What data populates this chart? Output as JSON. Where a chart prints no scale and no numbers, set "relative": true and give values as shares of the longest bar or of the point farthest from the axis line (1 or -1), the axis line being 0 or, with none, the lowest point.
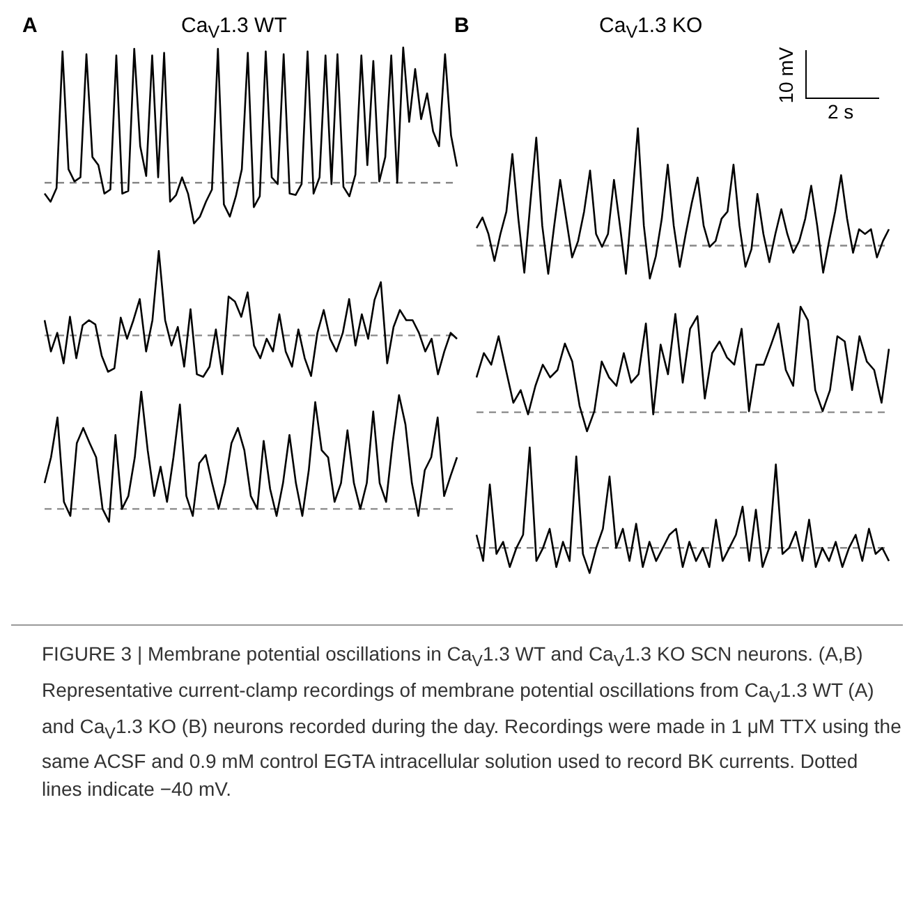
{
  "chart_data": [
    {
      "type": "line",
      "title": "Ca$_{V}$1.3 WT",
      "annotations": [
        "A",
        "FIGURE 3 | Membrane potential oscillations in Ca$_{V}$1.3 WT and Ca$_{V}$1.3 KO SCN neurons. (A,B) Representative current-clamp recordings of membrane potential oscillations from Ca$_{V}$1.3 WT (A) and Ca$_{V}$1.3 KO (B) neurons recorded during the day. Recordings were made in 1 μM TTX using the same ACSF and 0.9 mM control EGTA intracellular solution used to record BK currents. Dotted lines indicate −40 mV."
      ],
      "relative": true,
      "marker": "none",
      "categories": [
        null,
        null,
        null,
        null,
        null,
        null,
        null,
        null,
        null,
        null,
        null,
        null,
        null,
        null,
        null,
        null,
        null,
        null,
        null,
        null,
        null,
        null,
        null,
        null,
        null,
        null,
        null,
        null,
        null,
        null,
        null,
        null,
        null,
        null,
        null,
        null,
        null,
        null,
        null,
        null,
        null,
        null,
        null,
        null,
        null,
        null,
        null,
        null,
        null,
        null,
        null,
        null,
        null,
        null,
        null,
        null,
        null,
        null,
        null,
        null,
        null,
        null,
        null,
        null,
        null,
        null,
        null,
        null,
        null,
        null
      ],
      "series": [
        {
          "color": "#000000",
          "values": [
            -0.08,
            -0.14,
            -0.04,
            0.97,
            0.1,
            0.01,
            0.04,
            0.95,
            0.19,
            0.13,
            -0.08,
            -0.05,
            0.94,
            -0.08,
            -0.06,
            0.99,
            0.27,
            0.05,
            0.94,
            0.04,
            0.96,
            -0.14,
            -0.09,
            0.04,
            -0.08,
            -0.3,
            -0.25,
            -0.14,
            -0.05,
            0.99,
            -0.16,
            -0.25,
            -0.1,
            0.1,
            0.96,
            -0.18,
            -0.1,
            0.97,
            0.04,
            -0.01,
            0.95,
            -0.08,
            -0.09,
            -0.01,
            0.97,
            -0.08,
            0.04,
            0.94,
            -0.01,
            0.95,
            -0.03,
            -0.1,
            0.06,
            0.94,
            0.13,
            0.9,
            0.01,
            0.19,
            0.94,
            0,
            1,
            0.45,
            0.84,
            0.47,
            0.66,
            0.38,
            0.27,
            0.95,
            0.35,
            0.12
          ]
        }
      ],
      "ref_lines": [
        {
          "axis": "y",
          "value": 0,
          "color": "#888888",
          "line_style": "dashed"
        }
      ]
    },
    {
      "type": "line",
      "relative": true,
      "marker": "none",
      "categories": [
        null,
        null,
        null,
        null,
        null,
        null,
        null,
        null,
        null,
        null,
        null,
        null,
        null,
        null,
        null,
        null,
        null,
        null,
        null,
        null,
        null,
        null,
        null,
        null,
        null,
        null,
        null,
        null,
        null,
        null,
        null,
        null,
        null,
        null,
        null,
        null,
        null,
        null,
        null,
        null,
        null,
        null,
        null,
        null,
        null,
        null,
        null,
        null,
        null,
        null,
        null,
        null,
        null,
        null,
        null,
        null,
        null,
        null,
        null,
        null,
        null,
        null,
        null,
        null,
        null,
        null
      ],
      "series": [
        {
          "color": "#000000",
          "values": [
            0.18,
            -0.19,
            0.03,
            -0.33,
            0.22,
            -0.27,
            0.12,
            0.18,
            0.13,
            -0.24,
            -0.43,
            -0.39,
            0.21,
            -0.04,
            0.18,
            0.43,
            -0.19,
            0.18,
            1,
            0.18,
            -0.12,
            0.1,
            -0.37,
            0.31,
            -0.46,
            -0.49,
            -0.37,
            0.07,
            -0.46,
            0.46,
            0.4,
            0.22,
            0.51,
            -0.12,
            -0.27,
            -0.04,
            -0.19,
            0.25,
            -0.19,
            -0.37,
            0.07,
            -0.27,
            -0.48,
            0.03,
            0.3,
            -0.04,
            -0.19,
            0.03,
            0.43,
            -0.12,
            0.25,
            -0.04,
            0.42,
            0.63,
            -0.33,
            0.1,
            0.3,
            0.18,
            0.18,
            0.03,
            -0.19,
            -0.04,
            -0.46,
            -0.19,
            0.03,
            -0.04
          ]
        }
      ],
      "ref_lines": [
        {
          "axis": "y",
          "value": 0,
          "color": "#888888",
          "line_style": "dashed"
        }
      ]
    },
    {
      "type": "line",
      "relative": true,
      "marker": "none",
      "categories": [
        null,
        null,
        null,
        null,
        null,
        null,
        null,
        null,
        null,
        null,
        null,
        null,
        null,
        null,
        null,
        null,
        null,
        null,
        null,
        null,
        null,
        null,
        null,
        null,
        null,
        null,
        null,
        null,
        null,
        null,
        null,
        null,
        null,
        null,
        null,
        null,
        null,
        null,
        null,
        null,
        null,
        null,
        null,
        null,
        null,
        null,
        null,
        null,
        null,
        null,
        null,
        null,
        null,
        null,
        null,
        null,
        null,
        null,
        null,
        null,
        null,
        null,
        null,
        null,
        null
      ],
      "series": [
        {
          "color": "#000000",
          "values": [
            0.22,
            0.44,
            0.78,
            0.06,
            -0.06,
            0.56,
            0.69,
            0.56,
            0.44,
            0,
            -0.11,
            0.63,
            0,
            0.11,
            0.44,
            1,
            0.5,
            0.11,
            0.36,
            0.06,
            0.44,
            0.89,
            0.11,
            -0.06,
            0.39,
            0.46,
            0.22,
            0,
            0.22,
            0.56,
            0.69,
            0.5,
            0.11,
            0,
            0.58,
            0.17,
            -0.06,
            0.22,
            0.63,
            0.22,
            -0.06,
            0.33,
            0.91,
            0.5,
            0.44,
            0.06,
            0.22,
            0.67,
            0.22,
            0,
            0.22,
            0.83,
            0.22,
            0.06,
            0.56,
            0.97,
            0.72,
            0.22,
            -0.06,
            0.33,
            0.44,
            0.78,
            0.11,
            0.28,
            0.44
          ]
        }
      ],
      "ref_lines": [
        {
          "axis": "y",
          "value": 0,
          "color": "#888888",
          "line_style": "dashed"
        }
      ]
    },
    {
      "type": "line",
      "title": "Ca$_{V}$1.3 KO",
      "annotations": [
        "B",
        "10 mV",
        "2 s"
      ],
      "relative": true,
      "marker": "none",
      "categories": [
        null,
        null,
        null,
        null,
        null,
        null,
        null,
        null,
        null,
        null,
        null,
        null,
        null,
        null,
        null,
        null,
        null,
        null,
        null,
        null,
        null,
        null,
        null,
        null,
        null,
        null,
        null,
        null,
        null,
        null,
        null,
        null,
        null,
        null,
        null,
        null,
        null,
        null,
        null,
        null,
        null,
        null,
        null,
        null,
        null,
        null,
        null,
        null,
        null,
        null,
        null,
        null,
        null,
        null,
        null,
        null,
        null,
        null,
        null,
        null,
        null,
        null,
        null,
        null,
        null,
        null,
        null,
        null,
        null,
        null
      ],
      "series": [
        {
          "color": "#000000",
          "values": [
            0.15,
            0.24,
            0.1,
            -0.13,
            0.1,
            0.29,
            0.78,
            0.23,
            -0.23,
            0.36,
            0.92,
            0.17,
            -0.24,
            0.17,
            0.56,
            0.23,
            -0.1,
            0.04,
            0.29,
            0.64,
            0.1,
            -0.01,
            0.1,
            0.56,
            0.17,
            -0.24,
            0.36,
            1,
            0.17,
            -0.28,
            -0.09,
            0.23,
            0.69,
            0.17,
            -0.18,
            0.1,
            0.36,
            0.58,
            0.17,
            -0.01,
            0.04,
            0.23,
            0.29,
            0.69,
            0.17,
            -0.18,
            -0.03,
            0.44,
            0.1,
            -0.14,
            0.1,
            0.31,
            0.1,
            -0.06,
            0.04,
            0.23,
            0.51,
            0.17,
            -0.23,
            0.04,
            0.29,
            0.6,
            0.23,
            -0.06,
            0.14,
            0.1,
            0.14,
            -0.1,
            0.04,
            0.14
          ]
        }
      ],
      "ref_lines": [
        {
          "axis": "y",
          "value": 0,
          "color": "#888888",
          "line_style": "dashed"
        }
      ]
    },
    {
      "type": "line",
      "relative": true,
      "marker": "none",
      "categories": [
        null,
        null,
        null,
        null,
        null,
        null,
        null,
        null,
        null,
        null,
        null,
        null,
        null,
        null,
        null,
        null,
        null,
        null,
        null,
        null,
        null,
        null,
        null,
        null,
        null,
        null,
        null,
        null,
        null,
        null,
        null,
        null,
        null,
        null,
        null,
        null,
        null,
        null,
        null,
        null,
        null,
        null,
        null,
        null,
        null,
        null,
        null,
        null,
        null,
        null,
        null,
        null,
        null,
        null,
        null,
        null,
        null
      ],
      "series": [
        {
          "color": "#000000",
          "values": [
            0.33,
            0.56,
            0.45,
            0.72,
            0.4,
            0.09,
            0.21,
            -0.02,
            0.25,
            0.45,
            0.33,
            0.4,
            0.65,
            0.48,
            0.06,
            -0.18,
            0.01,
            0.48,
            0.33,
            0.25,
            0.56,
            0.28,
            0.36,
            0.84,
            -0.02,
            0.64,
            0.36,
            0.93,
            0.28,
            0.79,
            0.91,
            0.13,
            0.56,
            0.67,
            0.52,
            0.45,
            0.79,
            0.01,
            0.45,
            0.45,
            0.64,
            0.84,
            0.4,
            0.25,
            1,
            0.87,
            0.21,
            0.01,
            0.21,
            0.72,
            0.67,
            0.21,
            0.72,
            0.48,
            0.4,
            0.09,
            0.6
          ]
        }
      ],
      "ref_lines": [
        {
          "axis": "y",
          "value": 0,
          "color": "#888888",
          "line_style": "dashed"
        }
      ]
    },
    {
      "type": "line",
      "relative": true,
      "marker": "none",
      "categories": [
        null,
        null,
        null,
        null,
        null,
        null,
        null,
        null,
        null,
        null,
        null,
        null,
        null,
        null,
        null,
        null,
        null,
        null,
        null,
        null,
        null,
        null,
        null,
        null,
        null,
        null,
        null,
        null,
        null,
        null,
        null,
        null,
        null,
        null,
        null,
        null,
        null,
        null,
        null,
        null,
        null,
        null,
        null,
        null,
        null,
        null,
        null,
        null,
        null,
        null,
        null,
        null,
        null,
        null,
        null,
        null,
        null,
        null,
        null,
        null,
        null,
        null,
        null
      ],
      "series": [
        {
          "color": "#000000",
          "values": [
            0.13,
            -0.13,
            0.63,
            -0.06,
            0.06,
            -0.19,
            0,
            0.13,
            1,
            -0.13,
            0,
            0.19,
            -0.19,
            0.06,
            -0.13,
            0.91,
            -0.06,
            -0.25,
            0,
            0.19,
            0.71,
            0,
            0.19,
            -0.13,
            0.24,
            -0.19,
            0.06,
            -0.13,
            0,
            0.13,
            0.19,
            -0.19,
            0.06,
            -0.13,
            0,
            -0.19,
            0.28,
            -0.13,
            0,
            0.13,
            0.41,
            -0.13,
            0.38,
            -0.19,
            0,
            0.83,
            -0.06,
            0,
            0.16,
            -0.13,
            0.28,
            -0.19,
            0,
            -0.13,
            0.06,
            -0.19,
            0,
            0.13,
            -0.13,
            0.19,
            -0.06,
            0,
            -0.13
          ]
        }
      ],
      "ref_lines": [
        {
          "axis": "y",
          "value": 0,
          "color": "#888888",
          "line_style": "dashed"
        }
      ]
    }
  ]
}
